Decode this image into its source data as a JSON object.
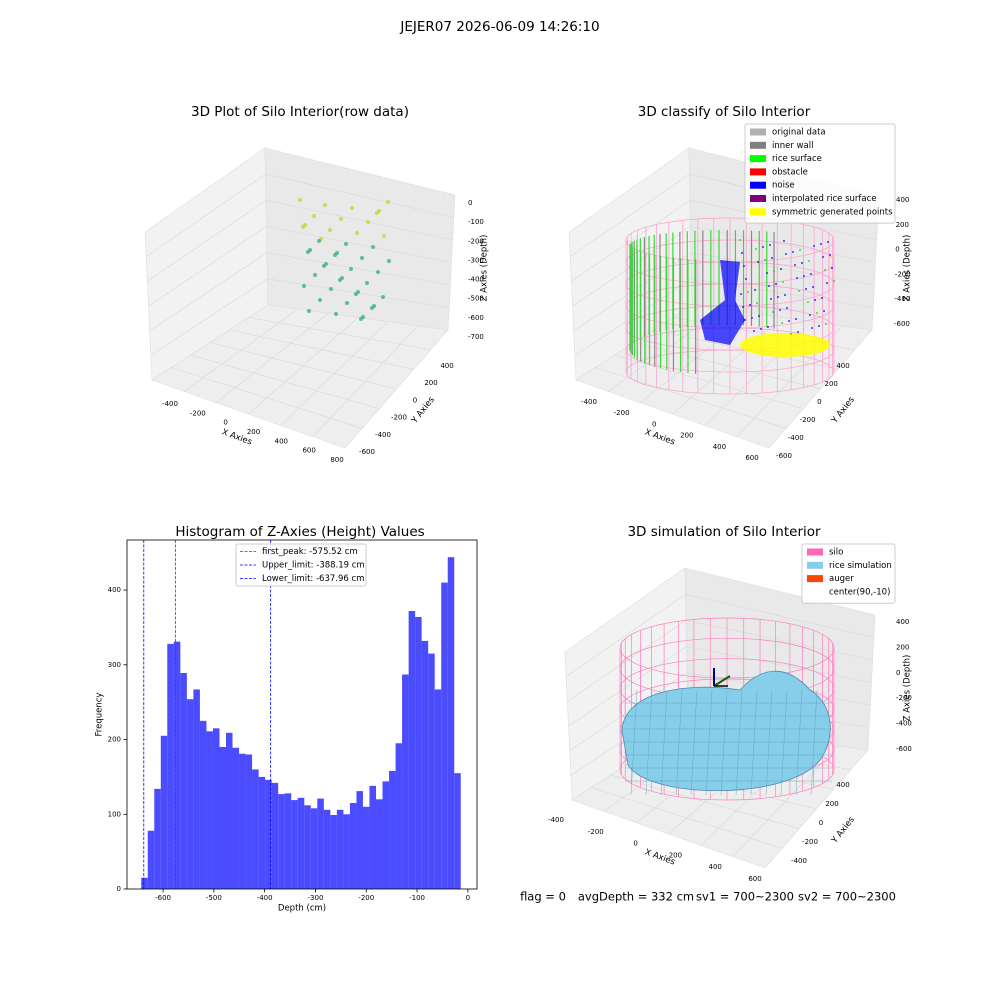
{
  "title": "JEJER07 2026-06-09 14:26:10",
  "chart_data": [
    {
      "type": "scatter3d",
      "title": "3D Plot of Silo Interior(row data)",
      "xlabel": "X Axies",
      "ylabel": "Y Axies",
      "zlabel": "Z Axies (Depth)",
      "xticks": [
        -400,
        -200,
        0,
        200,
        400,
        600,
        800
      ],
      "yticks": [
        -600,
        -400,
        -200,
        0,
        200,
        400
      ],
      "zticks": [
        0,
        -100,
        -200,
        -300,
        -400,
        -500,
        -600,
        -700
      ]
    },
    {
      "type": "scatter3d",
      "title": "3D classify of Silo Interior",
      "xlabel": "X Axies",
      "ylabel": "Y Axies",
      "zlabel": "Z Axies (Depth)",
      "xticks": [
        -400,
        -200,
        0,
        200,
        400,
        600
      ],
      "yticks": [
        -600,
        -400,
        -200,
        0,
        200,
        400
      ],
      "zticks": [
        400,
        200,
        0,
        -200,
        -400,
        -600
      ],
      "legend_loc": "upper right",
      "legend": [
        {
          "label": "original data",
          "color": "#b0b0b0"
        },
        {
          "label": "inner wall",
          "color": "#808080"
        },
        {
          "label": "rice surface",
          "color": "#00ff00"
        },
        {
          "label": "obstacle",
          "color": "#ff0000"
        },
        {
          "label": "noise",
          "color": "#0000ff"
        },
        {
          "label": "interpolated rice surface",
          "color": "#800080"
        },
        {
          "label": "symmetric generated points",
          "color": "#ffff00"
        }
      ]
    },
    {
      "type": "histogram",
      "title": "Histogram of Z-Axies (Height) Values",
      "xlabel": "Depth (cm)",
      "ylabel": "Frequency",
      "color": "#0000ff",
      "alpha": 0.7,
      "bins": [
        -643,
        -630.2,
        -617.3,
        -604.5,
        -591.7,
        -578.8,
        -566.0,
        -553.1,
        -540.3,
        -527.5,
        -514.6,
        -501.8,
        -488.9,
        -476.1,
        -463.3,
        -450.4,
        -437.6,
        -424.8,
        -411.9,
        -399.1,
        -386.2,
        -373.4,
        -360.6,
        -347.7,
        -334.9,
        -322.0,
        -309.2,
        -296.4,
        -283.5,
        -270.7,
        -257.9,
        -245.0,
        -232.2,
        -219.3,
        -206.5,
        -193.7,
        -180.8,
        -168.0,
        -155.1,
        -142.3,
        -129.5,
        -116.6,
        -103.8,
        -91.0,
        -78.1,
        -65.3,
        -52.4,
        -39.6,
        -26.8,
        -14
      ],
      "values": [
        15,
        78,
        134,
        205,
        328,
        331,
        289,
        254,
        267,
        225,
        211,
        215,
        190,
        209,
        189,
        181,
        180,
        160,
        150,
        146,
        142,
        127,
        128,
        119,
        122,
        112,
        108,
        121,
        106,
        99,
        106,
        100,
        115,
        131,
        110,
        138,
        120,
        144,
        158,
        195,
        287,
        372,
        364,
        332,
        315,
        267,
        410,
        444,
        155
      ],
      "xlim": [
        -671,
        18
      ],
      "ylim": [
        0,
        467
      ],
      "xticks": [
        -600,
        -500,
        -400,
        -300,
        -200,
        -100,
        0
      ],
      "yticks": [
        0,
        100,
        200,
        300,
        400
      ],
      "grid": false,
      "legend_loc": "upper center",
      "vlines": [
        {
          "value": -575.52,
          "label": "first_peak: -575.52 cm",
          "color": "#ff0000"
        },
        {
          "value": -388.19,
          "label": "Upper_limit: -388.19 cm",
          "color": "#0000ff"
        },
        {
          "value": -637.96,
          "label": "Lower_limit: -637.96 cm",
          "color": "#0000ff"
        }
      ]
    },
    {
      "type": "surface3d",
      "title": "3D simulation of Silo Interior",
      "xlabel": "X Axies",
      "ylabel": "Y Axies",
      "zlabel": "Z Axies (Depth)",
      "xticks": [
        -400,
        -200,
        0,
        200,
        400,
        600
      ],
      "yticks": [
        -400,
        -200,
        0,
        200,
        400
      ],
      "zticks": [
        400,
        200,
        0,
        -200,
        -400,
        -600
      ],
      "legend_loc": "upper right",
      "legend": [
        {
          "label": "silo",
          "color": "#ff69b4"
        },
        {
          "label": "rice simulation",
          "color": "#87ceeb"
        },
        {
          "label": "auger",
          "color": "#ff4500"
        },
        {
          "label": "center(90,-10)"
        }
      ]
    }
  ],
  "footer": [
    "flag = 0",
    "avgDepth = 332 cm",
    "sv1 = 700~2300",
    "sv2 = 700~2300"
  ]
}
